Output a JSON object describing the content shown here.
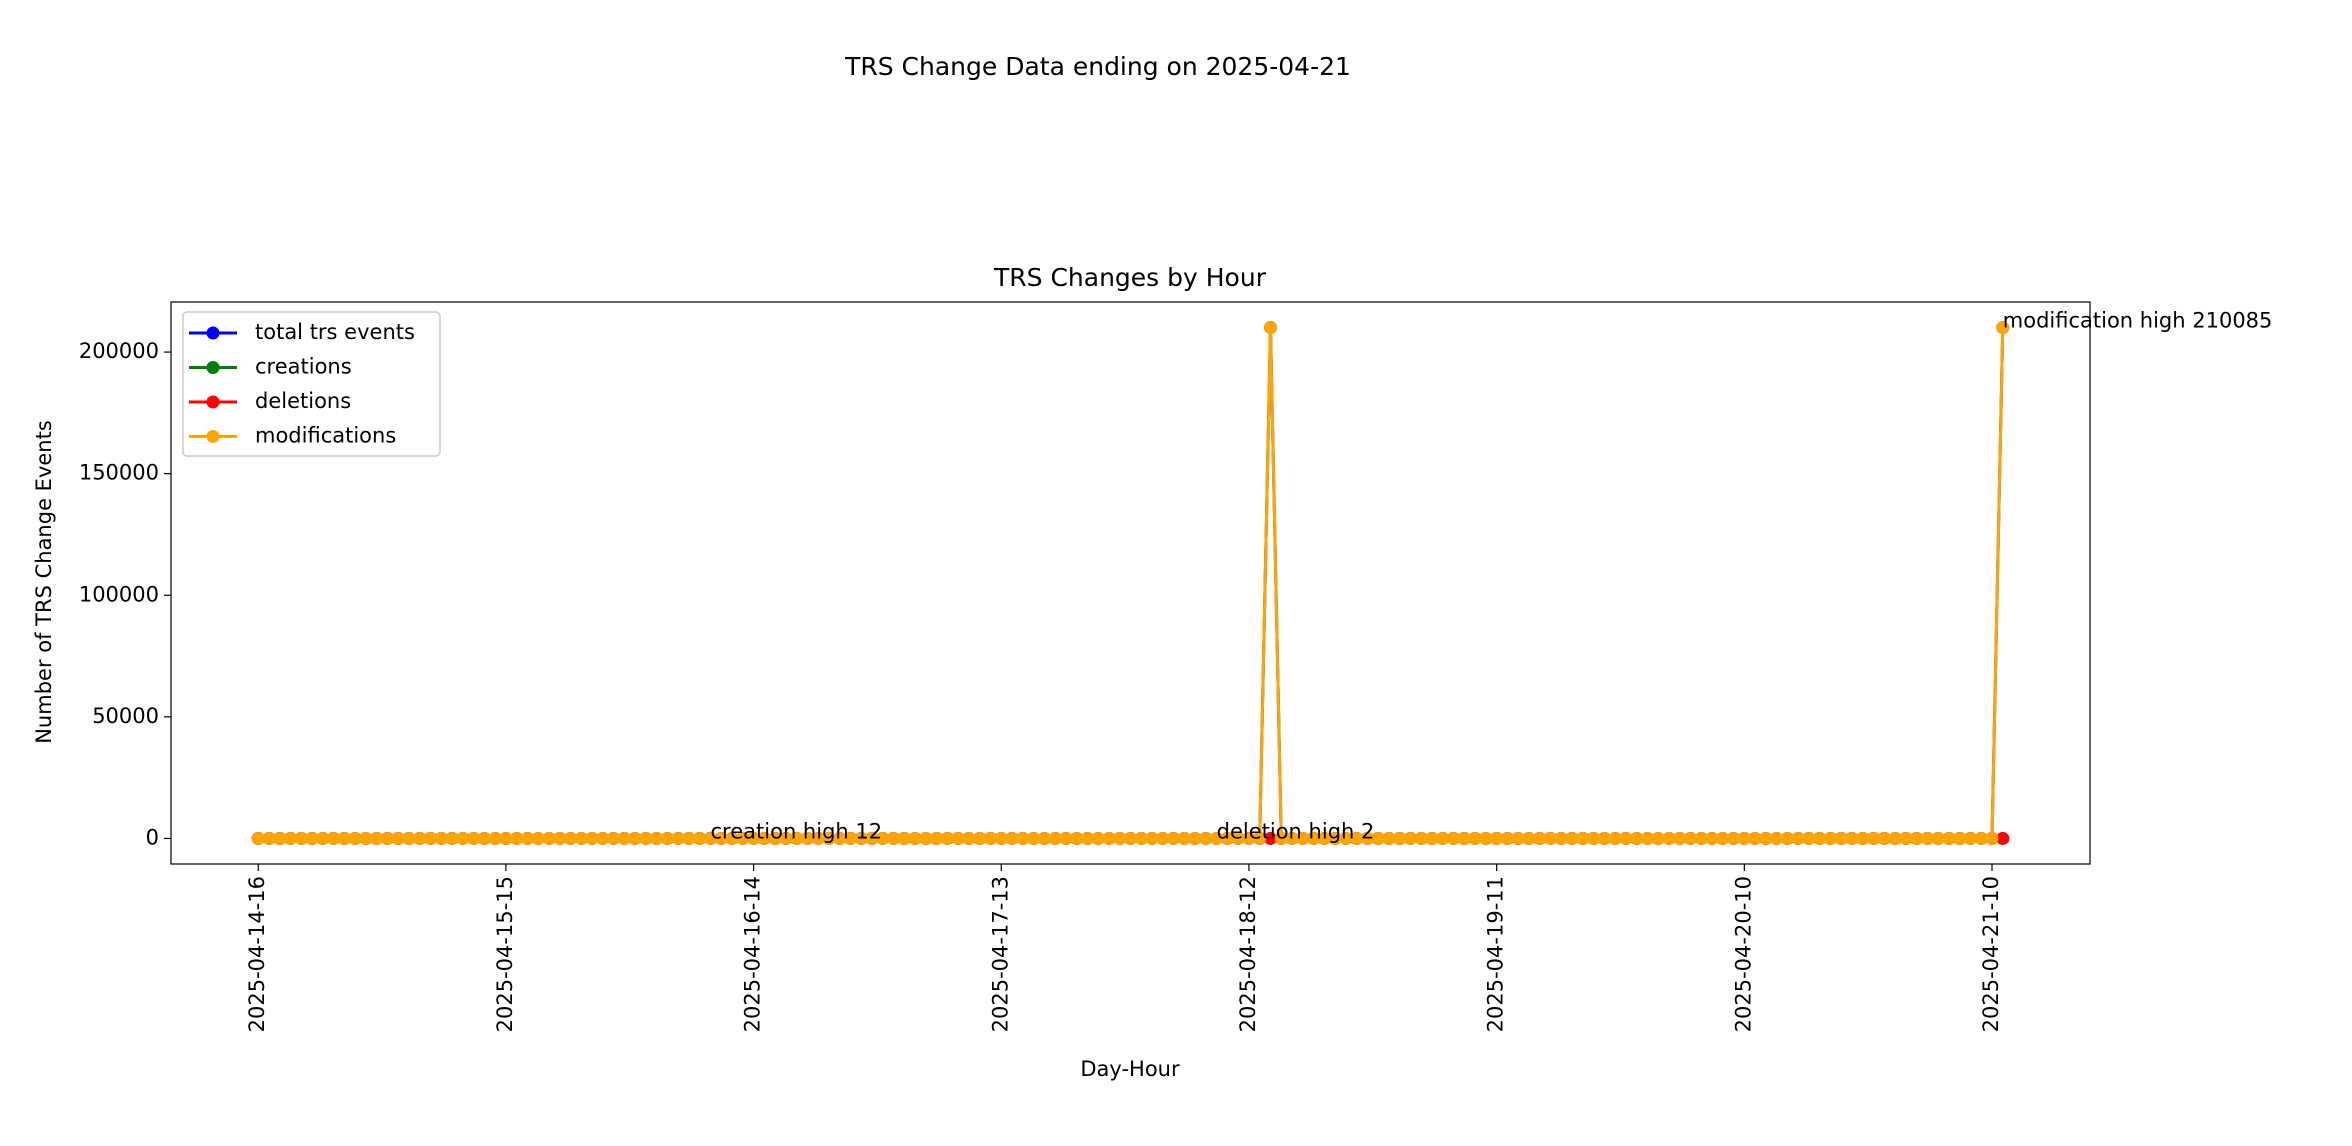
{
  "chart_data": {
    "type": "line",
    "suptitle": "TRS Change Data ending on 2025-04-21",
    "title": "TRS Changes by Hour",
    "x_label": "Day-Hour",
    "y_label": "Number of TRS Change Events",
    "categories": [
      "2025-04-14-16",
      null,
      null,
      null,
      null,
      null,
      null,
      null,
      null,
      null,
      null,
      null,
      null,
      null,
      null,
      null,
      null,
      null,
      null,
      null,
      null,
      null,
      null,
      "2025-04-15-15",
      null,
      null,
      null,
      null,
      null,
      null,
      null,
      null,
      null,
      null,
      null,
      null,
      null,
      null,
      null,
      null,
      null,
      null,
      null,
      null,
      null,
      null,
      "2025-04-16-14",
      null,
      null,
      null,
      null,
      null,
      null,
      null,
      null,
      null,
      null,
      null,
      null,
      null,
      null,
      null,
      null,
      null,
      null,
      null,
      null,
      null,
      null,
      "2025-04-17-13",
      null,
      null,
      null,
      null,
      null,
      null,
      null,
      null,
      null,
      null,
      null,
      null,
      null,
      null,
      null,
      null,
      null,
      null,
      null,
      null,
      null,
      null,
      "2025-04-18-12",
      null,
      null,
      null,
      null,
      null,
      null,
      null,
      null,
      null,
      null,
      null,
      null,
      null,
      null,
      null,
      null,
      null,
      null,
      null,
      null,
      null,
      null,
      "2025-04-19-11",
      null,
      null,
      null,
      null,
      null,
      null,
      null,
      null,
      null,
      null,
      null,
      null,
      null,
      null,
      null,
      null,
      null,
      null,
      null,
      null,
      null,
      null,
      "2025-04-20-10",
      null,
      null,
      null,
      null,
      null,
      null,
      null,
      null,
      null,
      null,
      null,
      null,
      null,
      null,
      null,
      null,
      null,
      null,
      null,
      null,
      null,
      null,
      "2025-04-21-10",
      null
    ],
    "series": [
      {
        "name": "total trs events",
        "color": "blue",
        "values": [
          0,
          0,
          0,
          0,
          0,
          0,
          0,
          0,
          0,
          0,
          0,
          0,
          0,
          0,
          0,
          0,
          0,
          0,
          0,
          0,
          0,
          0,
          0,
          0,
          0,
          0,
          0,
          0,
          0,
          0,
          0,
          0,
          0,
          0,
          0,
          0,
          0,
          0,
          0,
          0,
          0,
          0,
          12,
          0,
          0,
          0,
          0,
          0,
          0,
          0,
          0,
          0,
          0,
          0,
          0,
          0,
          0,
          0,
          0,
          0,
          0,
          0,
          0,
          0,
          0,
          0,
          0,
          0,
          0,
          0,
          0,
          0,
          0,
          0,
          0,
          0,
          0,
          0,
          0,
          0,
          0,
          0,
          0,
          0,
          0,
          0,
          0,
          0,
          0,
          2,
          0,
          0,
          0,
          0,
          210085,
          0,
          0,
          0,
          0,
          0,
          0,
          0,
          0,
          0,
          0,
          0,
          0,
          0,
          0,
          0,
          0,
          0,
          0,
          0,
          0,
          0,
          0,
          0,
          0,
          0,
          0,
          0,
          0,
          0,
          0,
          0,
          0,
          0,
          0,
          0,
          0,
          0,
          0,
          0,
          0,
          0,
          0,
          0,
          0,
          0,
          0,
          0,
          0,
          0,
          0,
          0,
          0,
          0,
          0,
          0,
          0,
          0,
          0,
          0,
          0,
          0,
          0,
          0,
          0,
          0,
          0,
          0,
          210085
        ]
      },
      {
        "name": "creations",
        "color": "green",
        "annotation": "creation high 12",
        "values": [
          0,
          0,
          0,
          0,
          0,
          0,
          0,
          0,
          0,
          0,
          0,
          0,
          0,
          0,
          0,
          0,
          0,
          0,
          0,
          0,
          0,
          0,
          0,
          0,
          0,
          0,
          0,
          0,
          0,
          0,
          0,
          0,
          0,
          0,
          0,
          0,
          0,
          0,
          0,
          0,
          0,
          0,
          12,
          0,
          0,
          0,
          0,
          0,
          0,
          0,
          0,
          0,
          0,
          0,
          0,
          0,
          0,
          0,
          0,
          0,
          0,
          0,
          0,
          0,
          0,
          0,
          0,
          0,
          0,
          0,
          0,
          0,
          0,
          0,
          0,
          0,
          0,
          0,
          0,
          0,
          0,
          0,
          0,
          0,
          0,
          0,
          0,
          0,
          0,
          0,
          0,
          0,
          0,
          0,
          0,
          0,
          0,
          0,
          0,
          0,
          0,
          0,
          0,
          0,
          0,
          0,
          0,
          0,
          0,
          0,
          0,
          0,
          0,
          0,
          0,
          0,
          0,
          0,
          0,
          0,
          0,
          0,
          0,
          0,
          0,
          0,
          0,
          0,
          0,
          0,
          0,
          0,
          0,
          0,
          0,
          0,
          0,
          0,
          0,
          0,
          0,
          0,
          0,
          0,
          0,
          0,
          0,
          0,
          0,
          0,
          0,
          0,
          0,
          0,
          0,
          0,
          0,
          0,
          0,
          0,
          0,
          0,
          0
        ]
      },
      {
        "name": "deletions",
        "color": "red",
        "annotation": "deletion high 2",
        "values": [
          0,
          0,
          0,
          0,
          0,
          0,
          0,
          0,
          0,
          0,
          0,
          0,
          0,
          0,
          0,
          0,
          0,
          0,
          0,
          0,
          0,
          0,
          0,
          0,
          0,
          0,
          0,
          0,
          0,
          0,
          0,
          0,
          0,
          0,
          0,
          0,
          0,
          0,
          0,
          0,
          0,
          0,
          0,
          0,
          0,
          0,
          0,
          0,
          0,
          0,
          0,
          0,
          0,
          0,
          0,
          0,
          0,
          0,
          0,
          0,
          0,
          0,
          0,
          0,
          0,
          0,
          0,
          0,
          0,
          0,
          0,
          0,
          0,
          0,
          0,
          0,
          0,
          0,
          0,
          0,
          0,
          0,
          0,
          0,
          0,
          0,
          0,
          0,
          0,
          2,
          0,
          0,
          0,
          0,
          0,
          0,
          0,
          0,
          0,
          0,
          0,
          0,
          0,
          0,
          0,
          0,
          0,
          0,
          0,
          0,
          0,
          0,
          0,
          0,
          0,
          0,
          0,
          0,
          0,
          0,
          0,
          0,
          0,
          0,
          0,
          0,
          0,
          0,
          0,
          0,
          0,
          0,
          0,
          0,
          0,
          0,
          0,
          0,
          0,
          0,
          0,
          0,
          0,
          0,
          0,
          0,
          0,
          0,
          0,
          0,
          0,
          0,
          0,
          0,
          0,
          0,
          0,
          0,
          0,
          0,
          0,
          0,
          0
        ]
      },
      {
        "name": "modifications",
        "color": "orange",
        "annotation": "modification high 210085",
        "values": [
          0,
          0,
          0,
          0,
          0,
          0,
          0,
          0,
          0,
          0,
          0,
          0,
          0,
          0,
          0,
          0,
          0,
          0,
          0,
          0,
          0,
          0,
          0,
          0,
          0,
          0,
          0,
          0,
          0,
          0,
          0,
          0,
          0,
          0,
          0,
          0,
          0,
          0,
          0,
          0,
          0,
          0,
          0,
          0,
          0,
          0,
          0,
          0,
          0,
          0,
          0,
          0,
          0,
          0,
          0,
          0,
          0,
          0,
          0,
          0,
          0,
          0,
          0,
          0,
          0,
          0,
          0,
          0,
          0,
          0,
          0,
          0,
          0,
          0,
          0,
          0,
          0,
          0,
          0,
          0,
          0,
          0,
          0,
          0,
          0,
          0,
          0,
          0,
          0,
          0,
          0,
          0,
          0,
          0,
          210085,
          0,
          0,
          0,
          0,
          0,
          0,
          0,
          0,
          0,
          0,
          0,
          0,
          0,
          0,
          0,
          0,
          0,
          0,
          0,
          0,
          0,
          0,
          0,
          0,
          0,
          0,
          0,
          0,
          0,
          0,
          0,
          0,
          0,
          0,
          0,
          0,
          0,
          0,
          0,
          0,
          0,
          0,
          0,
          0,
          0,
          0,
          0,
          0,
          0,
          0,
          0,
          0,
          0,
          0,
          0,
          0,
          0,
          0,
          0,
          0,
          0,
          0,
          0,
          0,
          0,
          0,
          0,
          210085
        ]
      }
    ],
    "ylim": [
      -10504,
      220589
    ],
    "yticks": [
      0,
      50000,
      100000,
      150000,
      200000
    ],
    "legend": "upper left",
    "grid": false
  }
}
